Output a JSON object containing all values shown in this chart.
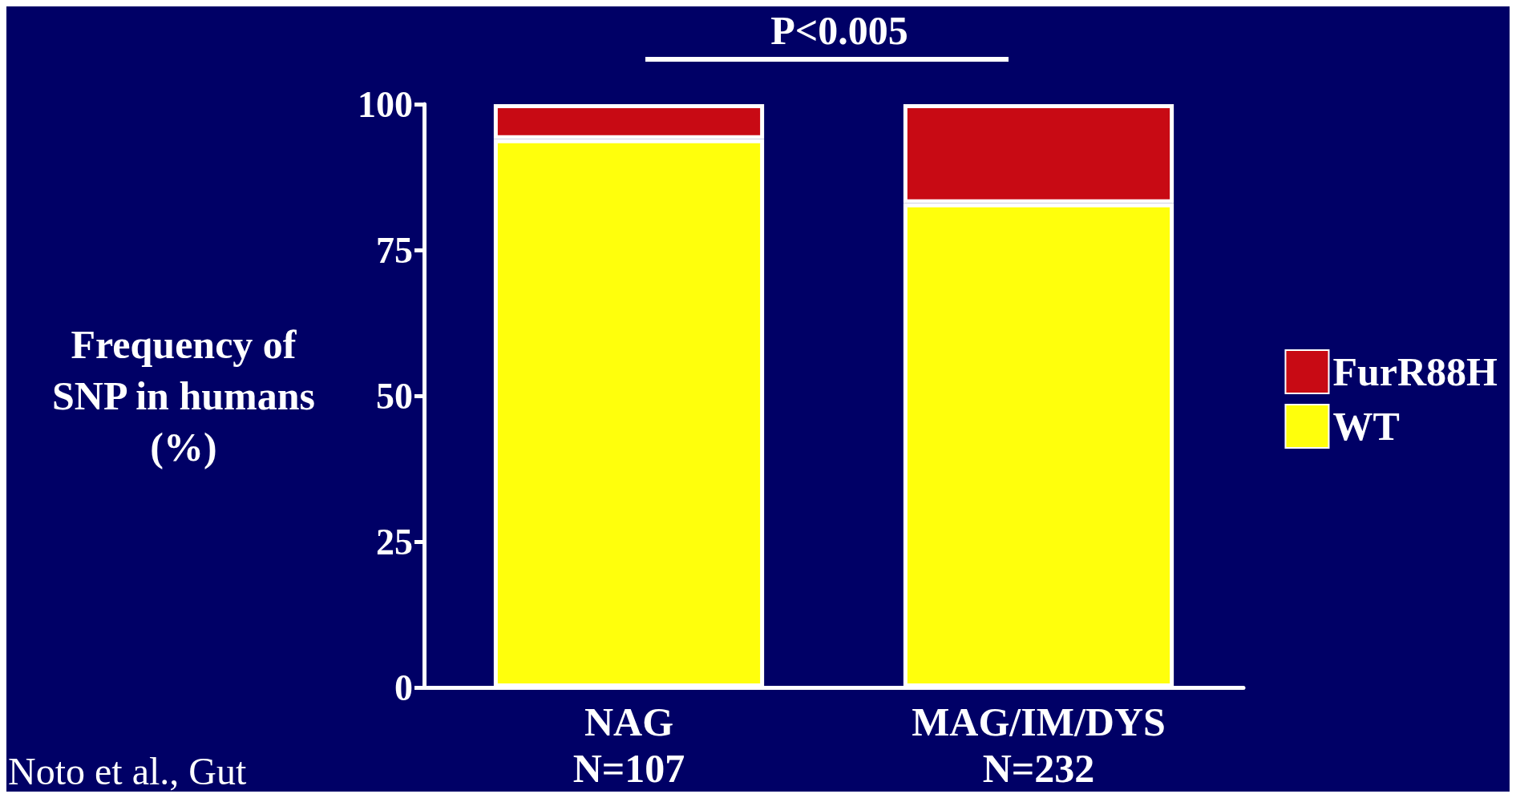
{
  "chart_data": {
    "type": "bar",
    "stacked": true,
    "title": "P<0.005",
    "ylabel": "Frequency of\nSNP in humans\n(%)",
    "categories": [
      "NAG\nN=107",
      "MAG/IM/DYS\nN=232"
    ],
    "series": [
      {
        "name": "WT",
        "color": "#ffff0c",
        "values": [
          94,
          83
        ]
      },
      {
        "name": "FurR88H",
        "color": "#c80a14",
        "values": [
          6,
          17
        ]
      }
    ],
    "ylim": [
      0,
      100
    ],
    "yticks": [
      0,
      25,
      50,
      75,
      100
    ],
    "grid": false,
    "legend": "right",
    "annotations": [
      "Noto et al., Gut"
    ]
  }
}
